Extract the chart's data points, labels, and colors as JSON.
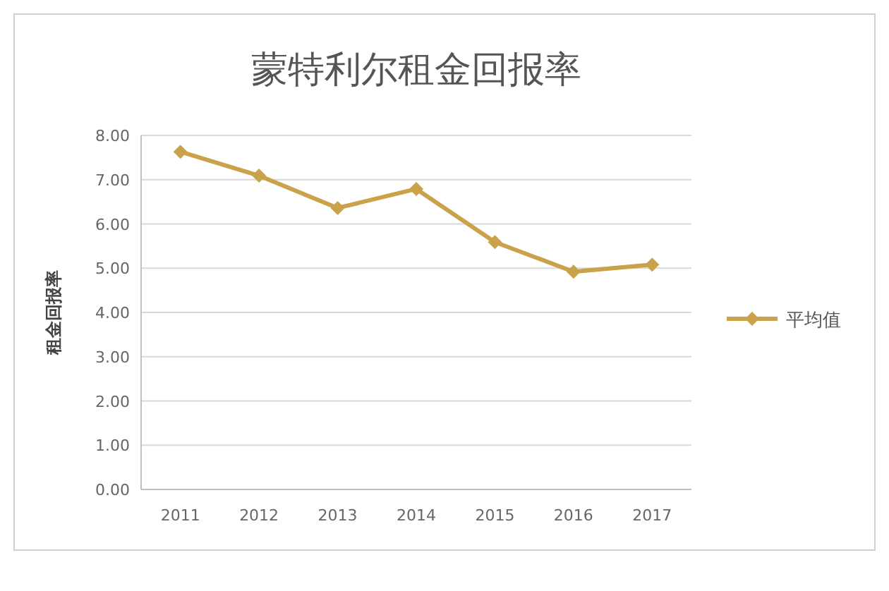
{
  "chart_data": {
    "type": "line",
    "title": "蒙特利尔租金回报率",
    "ylabel": "租金回报率",
    "categories": [
      "2011",
      "2012",
      "2013",
      "2014",
      "2015",
      "2016",
      "2017"
    ],
    "series": [
      {
        "name": "平均值",
        "color": "#c9a24a",
        "values": [
          7.63,
          7.09,
          6.36,
          6.79,
          5.59,
          4.92,
          5.08
        ]
      }
    ],
    "ylim": [
      0,
      8
    ],
    "yticks": [
      {
        "value": 0,
        "label": "0.00"
      },
      {
        "value": 1,
        "label": "1.00"
      },
      {
        "value": 2,
        "label": "2.00"
      },
      {
        "value": 3,
        "label": "3.00"
      },
      {
        "value": 4,
        "label": "4.00"
      },
      {
        "value": 5,
        "label": "5.00"
      },
      {
        "value": 6,
        "label": "6.00"
      },
      {
        "value": 7,
        "label": "7.00"
      },
      {
        "value": 8,
        "label": "8.00"
      }
    ],
    "grid": "y",
    "legend": "right",
    "marker": "diamond",
    "line_style": "solid"
  }
}
